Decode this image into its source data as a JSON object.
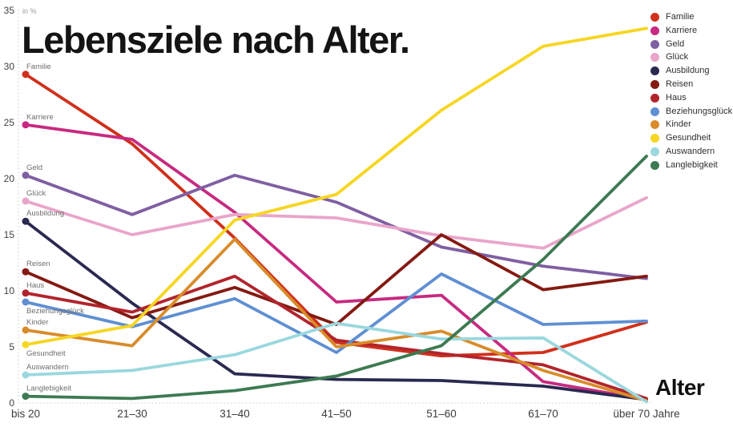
{
  "title": "Lebensziele nach Alter.",
  "unit_label": "in %",
  "x_axis_title": "Alter",
  "legend": {
    "position": "top-right",
    "items": [
      "Familie",
      "Karriere",
      "Geld",
      "Glück",
      "Ausbildung",
      "Reisen",
      "Haus",
      "Beziehungsglück",
      "Kinder",
      "Gesundheit",
      "Auswandern",
      "Langlebigkeit"
    ]
  },
  "chart_data": {
    "type": "line",
    "title": "Lebensziele nach Alter.",
    "unit": "in %",
    "xlabel": "Alter",
    "ylabel": "in %",
    "categories": [
      "bis 20",
      "21–30",
      "31–40",
      "41–50",
      "51–60",
      "61–70",
      "über 70 Jahre"
    ],
    "y_ticks": [
      0,
      5,
      10,
      15,
      20,
      25,
      30,
      35
    ],
    "ylim": [
      0,
      35
    ],
    "grid": "dotted y-axis and zero-line only",
    "legend_position": "top-right",
    "series": [
      {
        "name": "Familie",
        "color": "#d0301c",
        "label_position": "above",
        "values": [
          29.3,
          23.1,
          14.7,
          5.4,
          4.2,
          4.5,
          7.2
        ]
      },
      {
        "name": "Karriere",
        "color": "#c72a80",
        "label_position": "above",
        "values": [
          24.8,
          23.5,
          17.0,
          9.0,
          9.6,
          1.9,
          0.3
        ]
      },
      {
        "name": "Geld",
        "color": "#7f5fa2",
        "label_position": "above",
        "values": [
          20.3,
          16.8,
          20.3,
          17.9,
          13.9,
          12.2,
          11.1
        ]
      },
      {
        "name": "Glück",
        "color": "#e9a5ca",
        "label_position": "above",
        "values": [
          18.0,
          15.0,
          16.8,
          16.5,
          14.9,
          13.8,
          18.3
        ]
      },
      {
        "name": "Ausbildung",
        "color": "#2a2950",
        "label_position": "above",
        "values": [
          16.2,
          8.9,
          2.6,
          2.1,
          2.0,
          1.5,
          0.3
        ]
      },
      {
        "name": "Reisen",
        "color": "#841a12",
        "label_position": "above",
        "values": [
          11.7,
          7.6,
          10.3,
          7.0,
          15.0,
          10.1,
          11.3
        ]
      },
      {
        "name": "Haus",
        "color": "#b2242c",
        "label_position": "above",
        "values": [
          9.8,
          8.1,
          11.3,
          5.6,
          4.4,
          3.4,
          0.4
        ]
      },
      {
        "name": "Beziehungsglück",
        "color": "#5f8fd2",
        "label_position": "below",
        "values": [
          9.0,
          6.8,
          9.3,
          4.5,
          11.5,
          7.0,
          7.3
        ]
      },
      {
        "name": "Kinder",
        "color": "#d98c2b",
        "label_position": "above",
        "values": [
          6.5,
          5.1,
          14.6,
          5.0,
          6.4,
          2.9,
          0.2
        ]
      },
      {
        "name": "Gesundheit",
        "color": "#f6d622",
        "label_position": "below",
        "values": [
          5.2,
          6.9,
          16.3,
          18.6,
          26.1,
          31.8,
          33.4
        ]
      },
      {
        "name": "Auswandern",
        "color": "#9ad8de",
        "label_position": "above",
        "values": [
          2.5,
          2.9,
          4.3,
          7.1,
          5.7,
          5.8,
          0.1
        ]
      },
      {
        "name": "Langlebigkeit",
        "color": "#3d7a52",
        "label_position": "above",
        "values": [
          0.6,
          0.4,
          1.1,
          2.4,
          5.1,
          12.8,
          22.0
        ]
      }
    ]
  }
}
